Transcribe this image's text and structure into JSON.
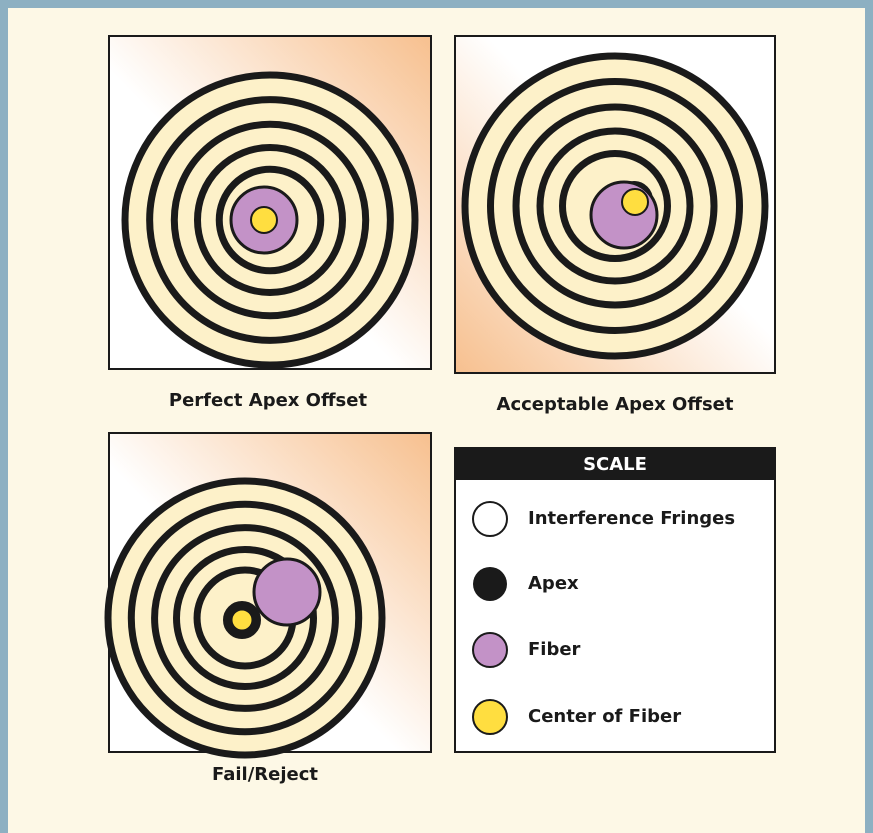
{
  "panels": [
    {
      "caption": "Perfect Apex Offset"
    },
    {
      "caption": "Acceptable Apex Offset"
    },
    {
      "caption": "Fail/Reject"
    }
  ],
  "legend": {
    "title": "SCALE",
    "items": [
      {
        "label": "Interference Fringes"
      },
      {
        "label": "Apex"
      },
      {
        "label": "Fiber"
      },
      {
        "label": "Center of Fiber"
      }
    ]
  }
}
